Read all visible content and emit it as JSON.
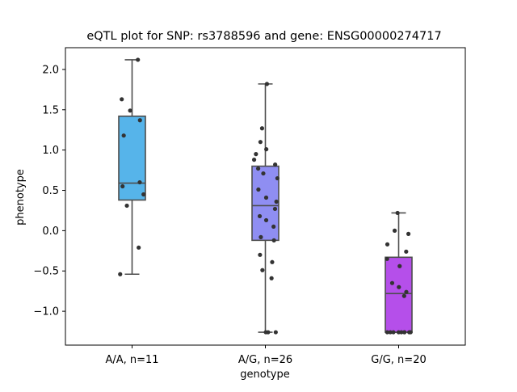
{
  "chart_data": {
    "type": "box",
    "title": "eQTL plot for SNP: rs3788596 and gene: ENSG00000274717",
    "xlabel": "genotype",
    "ylabel": "phenotype",
    "categories": [
      "A/A, n=11",
      "A/G, n=26",
      "G/G, n=20"
    ],
    "ylim": [
      -1.42,
      2.27
    ],
    "yticks": [
      -1.0,
      -0.5,
      0.0,
      0.5,
      1.0,
      1.5,
      2.0
    ],
    "ytick_labels": [
      "−1.0",
      "−0.5",
      "0.0",
      "0.5",
      "1.0",
      "1.5",
      "2.0"
    ],
    "grid": false,
    "legend": "none",
    "colors": [
      "#56b4ea",
      "#8f8ef2",
      "#b54fea"
    ],
    "point_color": "#333333",
    "box_edge_color": "#4d4d4d",
    "series": [
      {
        "category": "A/A, n=11",
        "whisker_low": -0.54,
        "q1": 0.38,
        "median": 0.59,
        "q3": 1.42,
        "whisker_high": 2.12,
        "points": [
          2.12,
          1.63,
          1.49,
          1.37,
          1.18,
          0.6,
          0.55,
          0.45,
          0.31,
          -0.21,
          -0.54
        ]
      },
      {
        "category": "A/G, n=26",
        "whisker_low": -1.26,
        "q1": -0.12,
        "median": 0.31,
        "q3": 0.8,
        "whisker_high": 1.82,
        "points": [
          1.82,
          1.27,
          1.1,
          1.01,
          0.95,
          0.88,
          0.82,
          0.77,
          0.71,
          0.65,
          0.51,
          0.41,
          0.36,
          0.27,
          0.18,
          0.13,
          0.05,
          -0.08,
          -0.12,
          -0.3,
          -0.39,
          -0.49,
          -0.59,
          -1.26,
          -1.26,
          -1.26
        ]
      },
      {
        "category": "G/G, n=20",
        "whisker_low": -1.26,
        "q1": -1.26,
        "median": -0.78,
        "q3": -0.33,
        "whisker_high": 0.22,
        "points": [
          0.22,
          0.0,
          -0.04,
          -0.17,
          -0.26,
          -0.35,
          -0.44,
          -0.65,
          -0.7,
          -0.76,
          -0.81,
          -1.26,
          -1.26,
          -1.26,
          -1.26,
          -1.26,
          -1.26,
          -1.26,
          -1.26,
          -1.26
        ]
      }
    ]
  }
}
